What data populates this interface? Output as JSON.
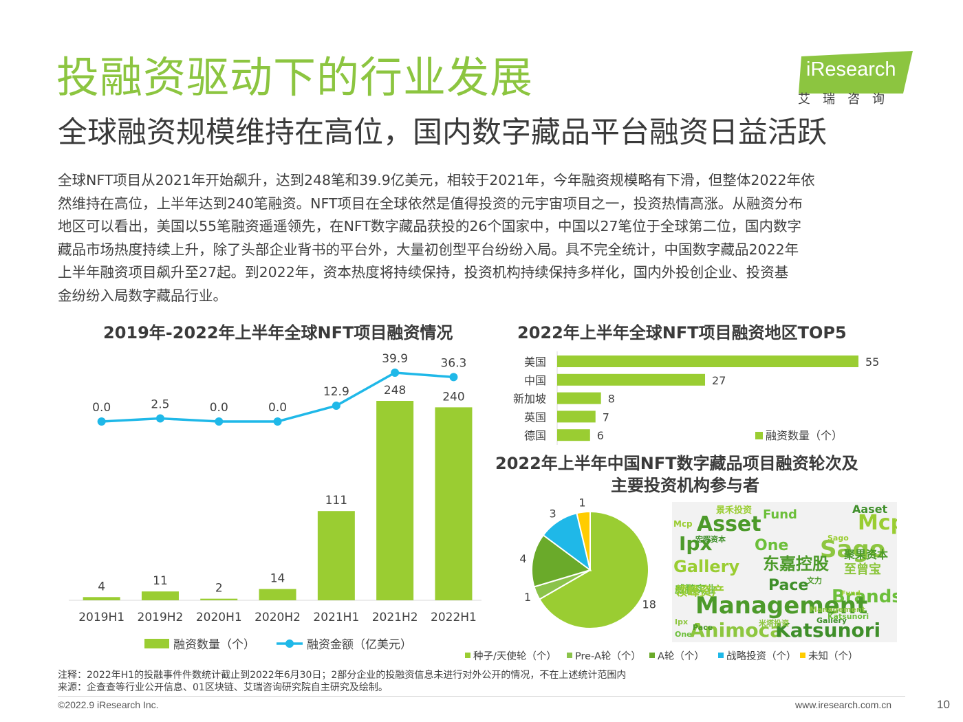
{
  "header": {
    "title": "投融资驱动下的行业发展",
    "subtitle": "全球融资规模维持在高位，国内数字藏品平台融资日益活跃",
    "logo_text": "iResearch",
    "logo_cn": "艾瑞咨询",
    "accent_color": "#8cc540"
  },
  "intro_lines": [
    "全球NFT项目从2021年开始飙升，达到248笔和39.9亿美元，相较于2021年，今年融资规模略有下滑，但整体2022年依",
    "然维持在高位，上半年达到240笔融资。NFT项目在全球依然是值得投资的元宇宙项目之一，投资热情高涨。从融资分布",
    "地区可以看出，美国以55笔融资遥遥领先，在NFT数字藏品获投的26个国家中，中国以27笔位于全球第二位，国内数字",
    "藏品市场热度持续上升，除了头部企业背书的平台外，大量初创型平台纷纷入局。具不完全统计，中国数字藏品2022年",
    "上半年融资项目飙升至27起。到2022年，资本热度将持续保持，投资机构持续保持多样化，国内外投创企业、投资基",
    "金纷纷入局数字藏品行业。"
  ],
  "chart_data": [
    {
      "type": "bar+line",
      "title": "2019年-2022年上半年全球NFT项目融资情况",
      "categories": [
        "2019H1",
        "2019H2",
        "2020H1",
        "2020H2",
        "2021H1",
        "2021H2",
        "2022H1"
      ],
      "series": [
        {
          "name": "融资数量（个）",
          "type": "bar",
          "color": "#9acd32",
          "values": [
            4,
            11,
            2,
            14,
            111,
            248,
            240
          ],
          "labels": [
            "4",
            "11",
            "2",
            "14",
            "111",
            "248",
            "240"
          ]
        },
        {
          "name": "融资金额（亿美元）",
          "type": "line",
          "color": "#1fb8e8",
          "values": [
            0.0,
            2.5,
            0.0,
            0.0,
            12.9,
            39.9,
            36.3
          ],
          "labels": [
            "0.0",
            "2.5",
            "0.0",
            "0.0",
            "12.9",
            "39.9",
            "36.3"
          ]
        }
      ],
      "legend_position": "bottom"
    },
    {
      "type": "bar",
      "orientation": "horizontal",
      "title": "2022年上半年全球NFT项目融资地区TOP5",
      "categories": [
        "美国",
        "中国",
        "新加坡",
        "英国",
        "德国"
      ],
      "series": [
        {
          "name": "融资数量（个）",
          "color": "#9acd32",
          "values": [
            55,
            27,
            8,
            7,
            6
          ],
          "labels": [
            "55",
            "27",
            "8",
            "7",
            "6"
          ]
        }
      ],
      "legend_position": "bottom-right"
    },
    {
      "type": "pie",
      "title": "2022年上半年中国NFT数字藏品项目融资轮次及",
      "title_line2": "主要投资机构参与者",
      "slices": [
        {
          "name": "种子/天使轮（个）",
          "value": 18,
          "label": "18",
          "color": "#9acd32"
        },
        {
          "name": "Pre-A轮（个）",
          "value": 1,
          "label": "1",
          "color": "#8bc34a"
        },
        {
          "name": "A轮（个）",
          "value": 4,
          "label": "4",
          "color": "#6aaa2a"
        },
        {
          "name": "战略投资（个）",
          "value": 3,
          "label": "3",
          "color": "#1fb8e8"
        },
        {
          "name": "未知（个）",
          "value": 1,
          "label": "1",
          "color": "#ffcc00"
        }
      ],
      "legend_position": "bottom"
    }
  ],
  "wordcloud": {
    "words": [
      "Asset",
      "Mcp",
      "Fund",
      "Ipx",
      "One",
      "Sago",
      "Gallery",
      "东嘉控股",
      "Pace",
      "Brands",
      "Management",
      "Animoca",
      "Katsunori",
      "景禾投资",
      "宏晖资本",
      "聚果资本",
      "至曾宝",
      "威鹏实业",
      "领峰资产",
      "米塔投资",
      "文力",
      "Aaset",
      "Mcp",
      "Ipx",
      "One",
      "Sago",
      "Pace",
      "Gallery",
      "Fund",
      "Katsunori",
      "Management"
    ],
    "colors": [
      "#4c9a2a",
      "#6cbf3a",
      "#9acd32",
      "#8dc63f",
      "#3f8f2a"
    ]
  },
  "footer": {
    "note": "注释：2022年H1的投融事件件数统计截止到2022年6月30日；2部分企业的投融资信息未进行对外公开的情况，不在上述统计范围内",
    "source": "来源：企查查等行业公开信息、01区块链、艾瑞咨询研究院自主研究及绘制。",
    "copyright": "©2022.9 iResearch Inc.",
    "site": "www.iresearch.com.cn",
    "page": "10"
  }
}
